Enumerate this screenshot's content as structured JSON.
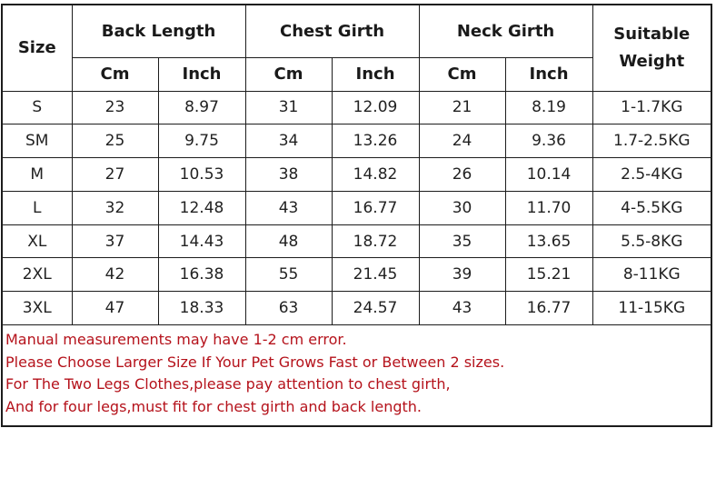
{
  "headers": {
    "size": "Size",
    "back_length": "Back Length",
    "chest_girth": "Chest Girth",
    "neck_girth": "Neck Girth",
    "weight_line1": "Suitable",
    "weight_line2": "Weight",
    "cm": "Cm",
    "inch": "Inch"
  },
  "rows": [
    {
      "size": "S",
      "back_cm": "23",
      "back_in": "8.97",
      "chest_cm": "31",
      "chest_in": "12.09",
      "neck_cm": "21",
      "neck_in": "8.19",
      "weight": "1-1.7KG"
    },
    {
      "size": "SM",
      "back_cm": "25",
      "back_in": "9.75",
      "chest_cm": "34",
      "chest_in": "13.26",
      "neck_cm": "24",
      "neck_in": "9.36",
      "weight": "1.7-2.5KG"
    },
    {
      "size": "M",
      "back_cm": "27",
      "back_in": "10.53",
      "chest_cm": "38",
      "chest_in": "14.82",
      "neck_cm": "26",
      "neck_in": "10.14",
      "weight": "2.5-4KG"
    },
    {
      "size": "L",
      "back_cm": "32",
      "back_in": "12.48",
      "chest_cm": "43",
      "chest_in": "16.77",
      "neck_cm": "30",
      "neck_in": "11.70",
      "weight": "4-5.5KG"
    },
    {
      "size": "XL",
      "back_cm": "37",
      "back_in": "14.43",
      "chest_cm": "48",
      "chest_in": "18.72",
      "neck_cm": "35",
      "neck_in": "13.65",
      "weight": "5.5-8KG"
    },
    {
      "size": "2XL",
      "back_cm": "42",
      "back_in": "16.38",
      "chest_cm": "55",
      "chest_in": "21.45",
      "neck_cm": "39",
      "neck_in": "15.21",
      "weight": "8-11KG"
    },
    {
      "size": "3XL",
      "back_cm": "47",
      "back_in": "18.33",
      "chest_cm": "63",
      "chest_in": "24.57",
      "neck_cm": "43",
      "neck_in": "16.77",
      "weight": "11-15KG"
    }
  ],
  "notes": [
    "Manual measurements may have 1-2 cm error.",
    "Please Choose Larger Size If Your Pet Grows Fast or Between 2 sizes.",
    "For The Two Legs Clothes,please pay attention to chest girth,",
    "And for four legs,must fit for chest girth and back length."
  ],
  "colors": {
    "inch_values": "#c8761e",
    "notes_text": "#b5121b",
    "border": "#1c1c1c"
  }
}
